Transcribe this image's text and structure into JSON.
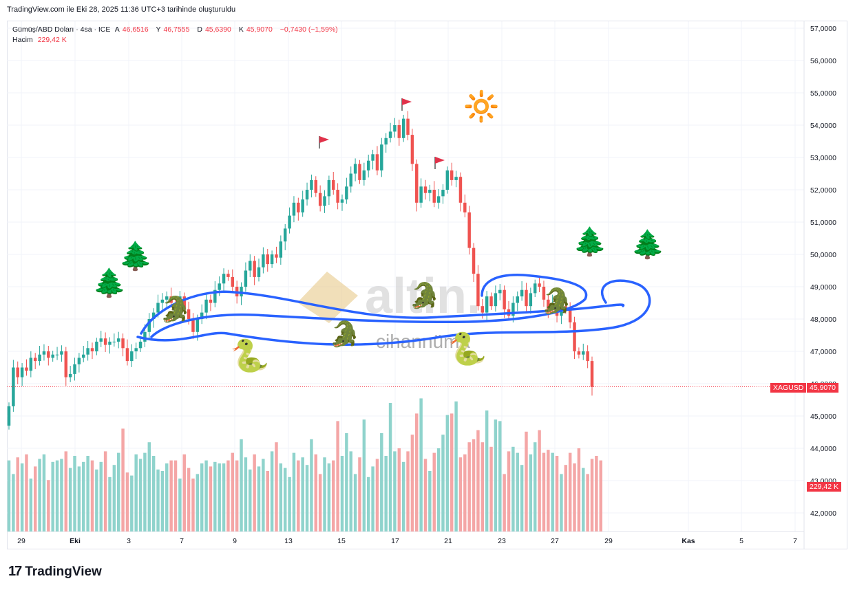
{
  "caption": "TradingView.com ile Eki 28, 2025 11:36 UTC+3 tarihinde oluşturuldu",
  "legend": {
    "symbol": "Gümüş/ABD Doları · 4sa · ICE",
    "open_label": "A",
    "open": "46,6516",
    "high_label": "Y",
    "high": "46,7555",
    "low_label": "D",
    "low": "45,6390",
    "close_label": "K",
    "close": "45,9070",
    "change": "−0,7430 (−1,59%)",
    "volume_label": "Hacim",
    "volume": "229,42 K"
  },
  "price_tags": {
    "symbol": "XAGUSD",
    "last_price": "45,9070",
    "volume": "229,42 K"
  },
  "watermark": {
    "brand": "altin.",
    "sub": "cihannüma"
  },
  "branding": "TradingView",
  "colors": {
    "up": "#26a69a",
    "down": "#ef5350",
    "up_vol": "#8fd3cc",
    "down_vol": "#f4a6a6",
    "annotation": "#2962ff"
  },
  "icons": [
    "tree-icon",
    "crocodile-icon",
    "snake-icon",
    "sun-icon",
    "flag-icon"
  ],
  "chart_data": {
    "type": "candlestick",
    "ylim": [
      41.45,
      57.3
    ],
    "yticks": [
      "57,0000",
      "56,0000",
      "55,0000",
      "54,0000",
      "53,0000",
      "52,0000",
      "51,0000",
      "50,0000",
      "49,0000",
      "48,0000",
      "47,0000",
      "46,0000",
      "45,0000",
      "44,0000",
      "43,0000",
      "42,0000"
    ],
    "xticks": [
      "29",
      "Eki",
      "3",
      "7",
      "9",
      "13",
      "15",
      "17",
      "21",
      "23",
      "27",
      "29",
      "Kas",
      "5",
      "7"
    ],
    "close_series": [
      45.3,
      46.5,
      46.2,
      46.5,
      46.4,
      46.8,
      46.7,
      46.9,
      47.0,
      46.8,
      46.9,
      46.9,
      47.0,
      46.2,
      46.3,
      46.6,
      46.8,
      46.9,
      47.1,
      47.0,
      47.3,
      47.4,
      47.2,
      47.3,
      47.3,
      47.4,
      47.1,
      46.7,
      47.0,
      47.1,
      47.3,
      47.6,
      48.0,
      48.2,
      48.5,
      48.6,
      48.7,
      48.5,
      48.4,
      48.7,
      48.3,
      48.0,
      47.6,
      48.0,
      48.2,
      48.6,
      48.5,
      48.9,
      49.1,
      49.4,
      49.3,
      49.0,
      48.7,
      49.0,
      49.5,
      49.8,
      49.3,
      49.6,
      50.0,
      49.7,
      50.0,
      49.9,
      50.4,
      50.8,
      51.2,
      51.6,
      51.3,
      51.7,
      52.0,
      52.3,
      51.9,
      51.5,
      51.8,
      52.3,
      52.0,
      51.6,
      51.7,
      52.1,
      52.5,
      52.8,
      52.3,
      52.6,
      52.9,
      53.1,
      52.6,
      53.4,
      53.6,
      53.8,
      54.0,
      53.6,
      54.2,
      53.7,
      52.8,
      51.6,
      52.1,
      51.9,
      52.0,
      51.6,
      51.8,
      52.0,
      52.6,
      52.3,
      52.4,
      51.6,
      51.3,
      50.2,
      49.4,
      48.4,
      48.2,
      48.7,
      48.4,
      48.8,
      48.9,
      48.3,
      48.1,
      48.5,
      48.7,
      48.9,
      48.4,
      48.8,
      49.1,
      49.0,
      48.6,
      48.3,
      48.5,
      48.1,
      48.4,
      48.3,
      47.9,
      47.0,
      46.9,
      47.0,
      46.7,
      45.9
    ],
    "volume_series": [
      0.47,
      0.38,
      0.49,
      0.45,
      0.51,
      0.35,
      0.43,
      0.48,
      0.51,
      0.34,
      0.46,
      0.47,
      0.48,
      0.53,
      0.42,
      0.5,
      0.43,
      0.46,
      0.5,
      0.47,
      0.41,
      0.46,
      0.53,
      0.36,
      0.44,
      0.52,
      0.68,
      0.39,
      0.37,
      0.51,
      0.48,
      0.52,
      0.59,
      0.5,
      0.41,
      0.4,
      0.45,
      0.47,
      0.47,
      0.35,
      0.51,
      0.42,
      0.35,
      0.38,
      0.45,
      0.47,
      0.43,
      0.46,
      0.45,
      0.45,
      0.47,
      0.52,
      0.47,
      0.61,
      0.49,
      0.41,
      0.51,
      0.43,
      0.48,
      0.4,
      0.53,
      0.59,
      0.45,
      0.42,
      0.36,
      0.52,
      0.47,
      0.49,
      0.44,
      0.61,
      0.51,
      0.38,
      0.49,
      0.45,
      0.47,
      0.73,
      0.5,
      0.65,
      0.53,
      0.38,
      0.49,
      0.74,
      0.36,
      0.43,
      0.48,
      0.65,
      0.5,
      0.85,
      0.53,
      0.55,
      0.46,
      0.53,
      0.64,
      0.78,
      0.88,
      0.48,
      0.4,
      0.52,
      0.55,
      0.64,
      0.77,
      0.78,
      0.86,
      0.49,
      0.51,
      0.59,
      0.61,
      0.67,
      0.59,
      0.8,
      0.56,
      0.74,
      0.73,
      0.38,
      0.53,
      0.56,
      0.52,
      0.44,
      0.66,
      0.51,
      0.59,
      0.67,
      0.52,
      0.54,
      0.52,
      0.5,
      0.38,
      0.44,
      0.52,
      0.45,
      0.55,
      0.42,
      0.38,
      0.48,
      0.5,
      0.47
    ]
  }
}
